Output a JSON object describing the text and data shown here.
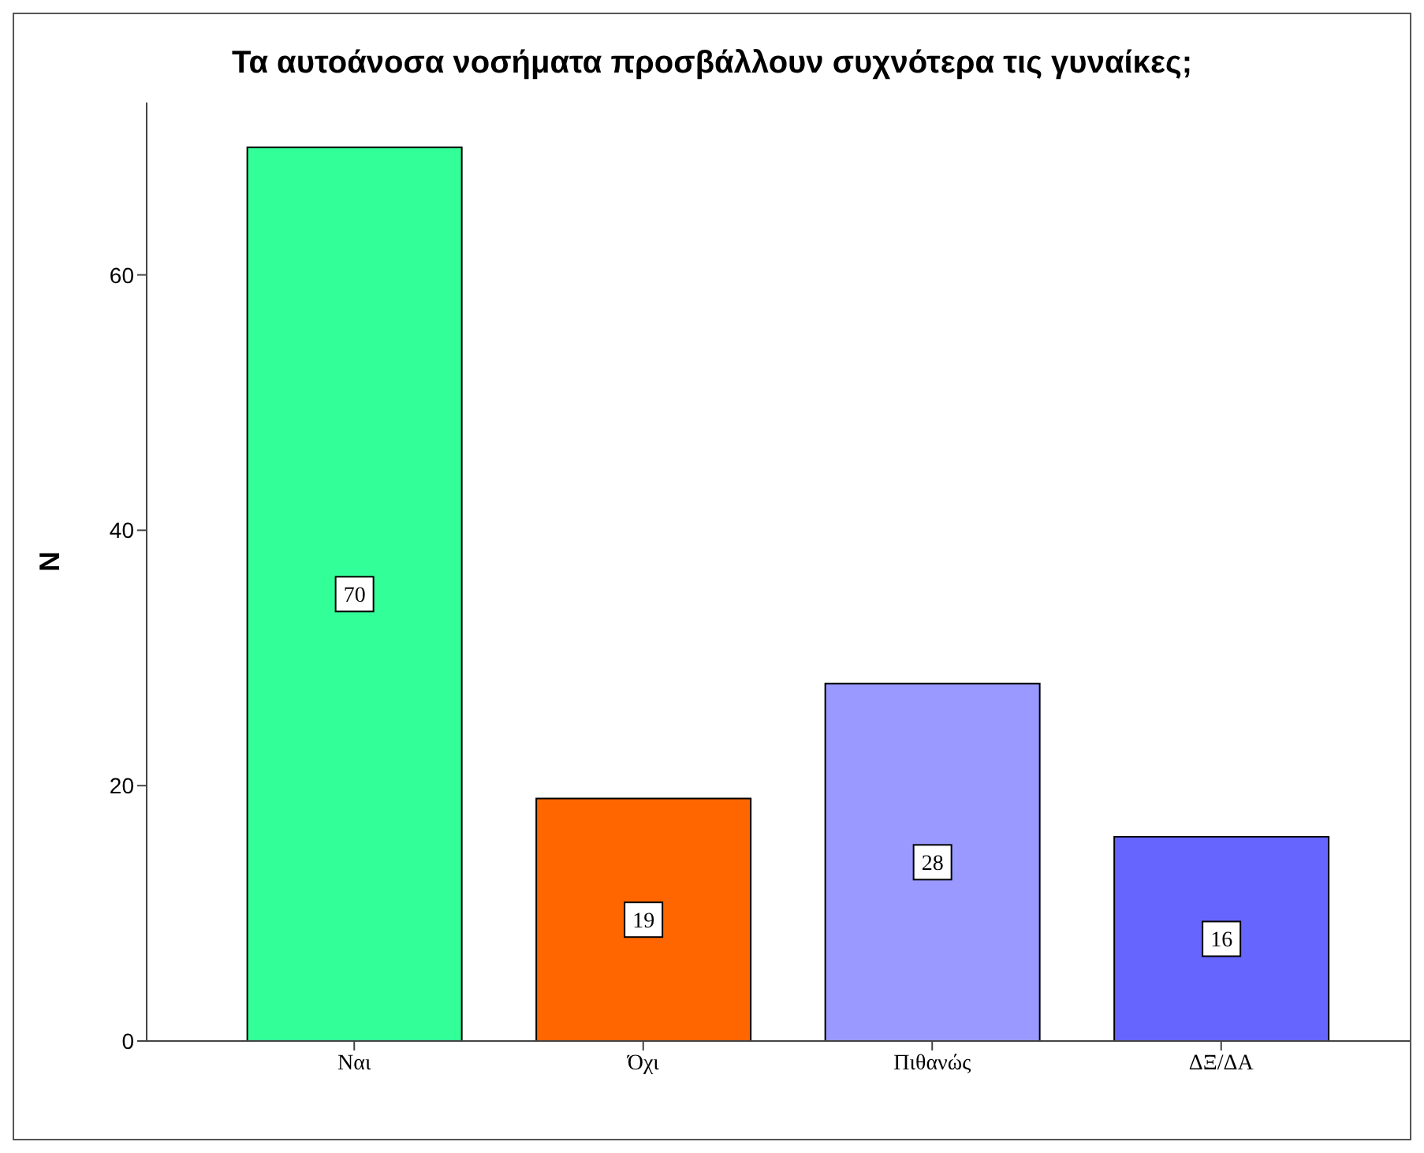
{
  "chart_data": {
    "type": "bar",
    "title": "Τα αυτοάνοσα νοσήματα προσβάλλουν συχνότερα τις γυναίκες;",
    "ylabel": "N",
    "categories": [
      "Ναι",
      "Όχι",
      "Πιθανώς",
      "ΔΞ/ΔΑ"
    ],
    "values": [
      70,
      19,
      28,
      16
    ],
    "colors": [
      "#33ff99",
      "#ff6600",
      "#9999ff",
      "#6666ff"
    ],
    "ylim": [
      0,
      73.5
    ],
    "yticks": [
      0,
      20,
      40,
      60
    ],
    "grid": false,
    "data_labels": true
  }
}
